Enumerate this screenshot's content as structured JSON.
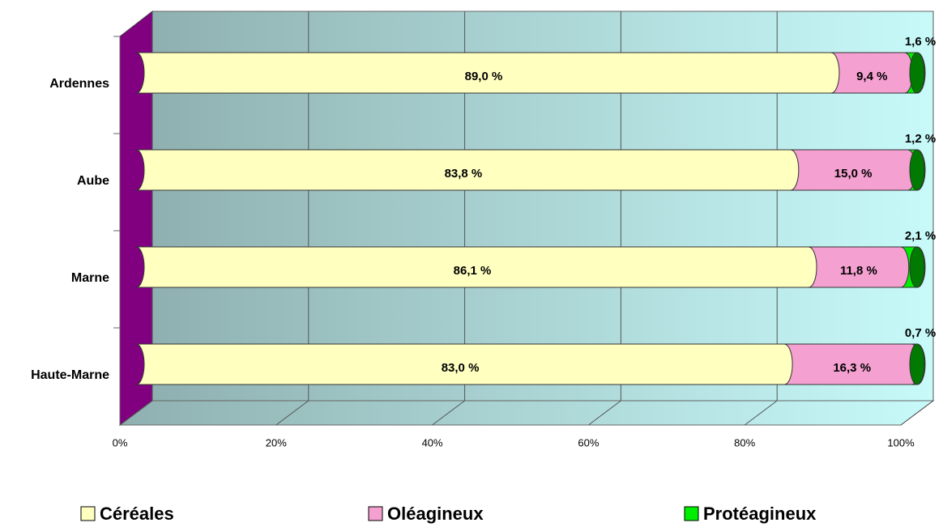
{
  "chart_data": {
    "type": "stacked-bar-horizontal",
    "categories": [
      "Ardennes",
      "Aube",
      "Marne",
      "Haute-Marne"
    ],
    "series": [
      {
        "name": "Céréales",
        "color": "#ffffc0",
        "values": [
          89.0,
          83.8,
          86.1,
          83.0
        ],
        "value_labels": [
          "89,0 %",
          "83,8 %",
          "86,1  %",
          "83,0 %"
        ]
      },
      {
        "name": "Oléagineux",
        "color": "#f4a0d0",
        "values": [
          9.4,
          15.0,
          11.8,
          16.3
        ],
        "value_labels": [
          "9,4 %",
          "15,0 %",
          "11,8 %",
          "16,3 %"
        ]
      },
      {
        "name": "Protéagineux",
        "color": "#00ee00",
        "values": [
          1.6,
          1.2,
          2.1,
          0.7
        ],
        "value_labels": [
          "1,6 %",
          "1,2 %",
          "2,1 %",
          "0,7 %"
        ]
      }
    ],
    "xlim": [
      0,
      100
    ],
    "xticks": [
      {
        "value": 0,
        "label": "0%"
      },
      {
        "value": 20,
        "label": "20%"
      },
      {
        "value": 40,
        "label": "40%"
      },
      {
        "value": 60,
        "label": "60%"
      },
      {
        "value": 80,
        "label": "80%"
      },
      {
        "value": 100,
        "label": "100%"
      }
    ],
    "grid": true,
    "legend": "bottom"
  }
}
